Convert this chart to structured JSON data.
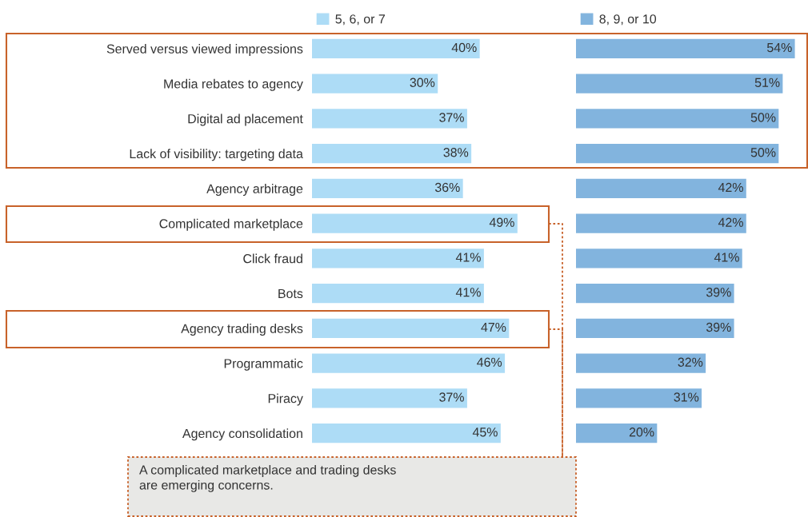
{
  "chart_data": [
    {
      "type": "bar",
      "orientation": "horizontal",
      "legend": "top left",
      "categories": [
        "Served versus viewed impressions",
        "Media rebates to agency",
        "Digital ad placement",
        "Lack of visibility: targeting data",
        "Agency arbitrage",
        "Complicated marketplace",
        "Click fraud",
        "Bots",
        "Agency trading desks",
        "Programmatic",
        "Piracy",
        "Agency consolidation"
      ],
      "series": [
        {
          "name": "5, 6, or 7",
          "color": "#addcf6",
          "values": [
            40,
            30,
            37,
            38,
            36,
            49,
            41,
            41,
            47,
            46,
            37,
            45
          ],
          "value_labels": [
            "40%",
            "30%",
            "37%",
            "38%",
            "36%",
            "49%",
            "41%",
            "41%",
            "47%",
            "46%",
            "37%",
            "45%"
          ]
        }
      ],
      "annotations": [
        "A complicated marketplace and trading desks\nare emerging concerns."
      ]
    },
    {
      "type": "bar",
      "orientation": "horizontal",
      "legend": "top left",
      "categories": [
        null,
        null,
        null,
        null,
        null,
        null,
        null,
        null,
        null,
        null,
        null,
        null
      ],
      "series": [
        {
          "name": "8, 9, or 10",
          "color": "#82b4de",
          "values": [
            54,
            51,
            50,
            50,
            42,
            42,
            41,
            39,
            39,
            32,
            31,
            20
          ],
          "value_labels": [
            "54%",
            "51%",
            "50%",
            "50%",
            "42%",
            "42%",
            "41%",
            "39%",
            "39%",
            "32%",
            "31%",
            "20%"
          ]
        }
      ]
    }
  ]
}
